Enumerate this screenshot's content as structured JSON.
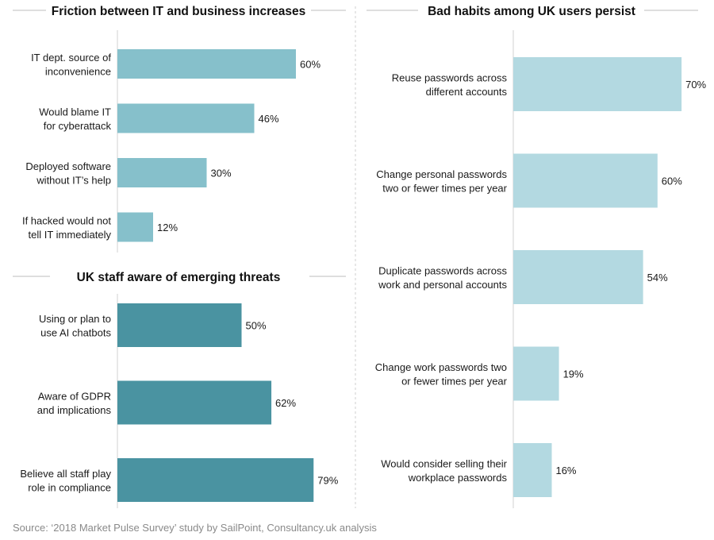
{
  "source": "Source: ‘2018 Market Pulse Survey’ study by SailPoint, Consultancy.uk analysis",
  "chart_data": [
    {
      "type": "bar",
      "orientation": "horizontal",
      "title": "Friction between IT and business increases",
      "categories": [
        [
          "IT dept. source of",
          "inconvenience"
        ],
        [
          "Would blame IT",
          "for cyberattack"
        ],
        [
          "Deployed  software",
          "without IT’s help"
        ],
        [
          "If hacked would not",
          "tell IT immediately"
        ]
      ],
      "values": [
        60,
        46,
        30,
        12
      ],
      "value_labels": [
        "60%",
        "46%",
        "30%",
        "12%"
      ],
      "unit": "%",
      "color": "#86c0cb",
      "xlim": [
        0,
        100
      ]
    },
    {
      "type": "bar",
      "orientation": "horizontal",
      "title": "UK staff aware of emerging threats",
      "categories": [
        [
          "Using or plan to",
          "use AI chatbots"
        ],
        [
          "Aware of GDPR",
          "and implications"
        ],
        [
          "Believe all staff play",
          "role in compliance"
        ]
      ],
      "values": [
        50,
        62,
        79
      ],
      "value_labels": [
        "50%",
        "62%",
        "79%"
      ],
      "unit": "%",
      "color": "#4a93a1",
      "xlim": [
        0,
        100
      ]
    },
    {
      "type": "bar",
      "orientation": "horizontal",
      "title": "Bad habits among UK users persist",
      "categories": [
        [
          "Reuse passwords across",
          "different accounts"
        ],
        [
          "Change personal passwords",
          "two or fewer times per year"
        ],
        [
          "Duplicate passwords across",
          "work and personal accounts"
        ],
        [
          "Change work passwords two",
          "or fewer times per year"
        ],
        [
          "Would consider selling their",
          "workplace passwords"
        ]
      ],
      "values": [
        70,
        60,
        54,
        19,
        16
      ],
      "value_labels": [
        "70%",
        "60%",
        "54%",
        "19%",
        "16%"
      ],
      "unit": "%",
      "color": "#b3d9e1",
      "xlim": [
        0,
        100
      ]
    }
  ]
}
